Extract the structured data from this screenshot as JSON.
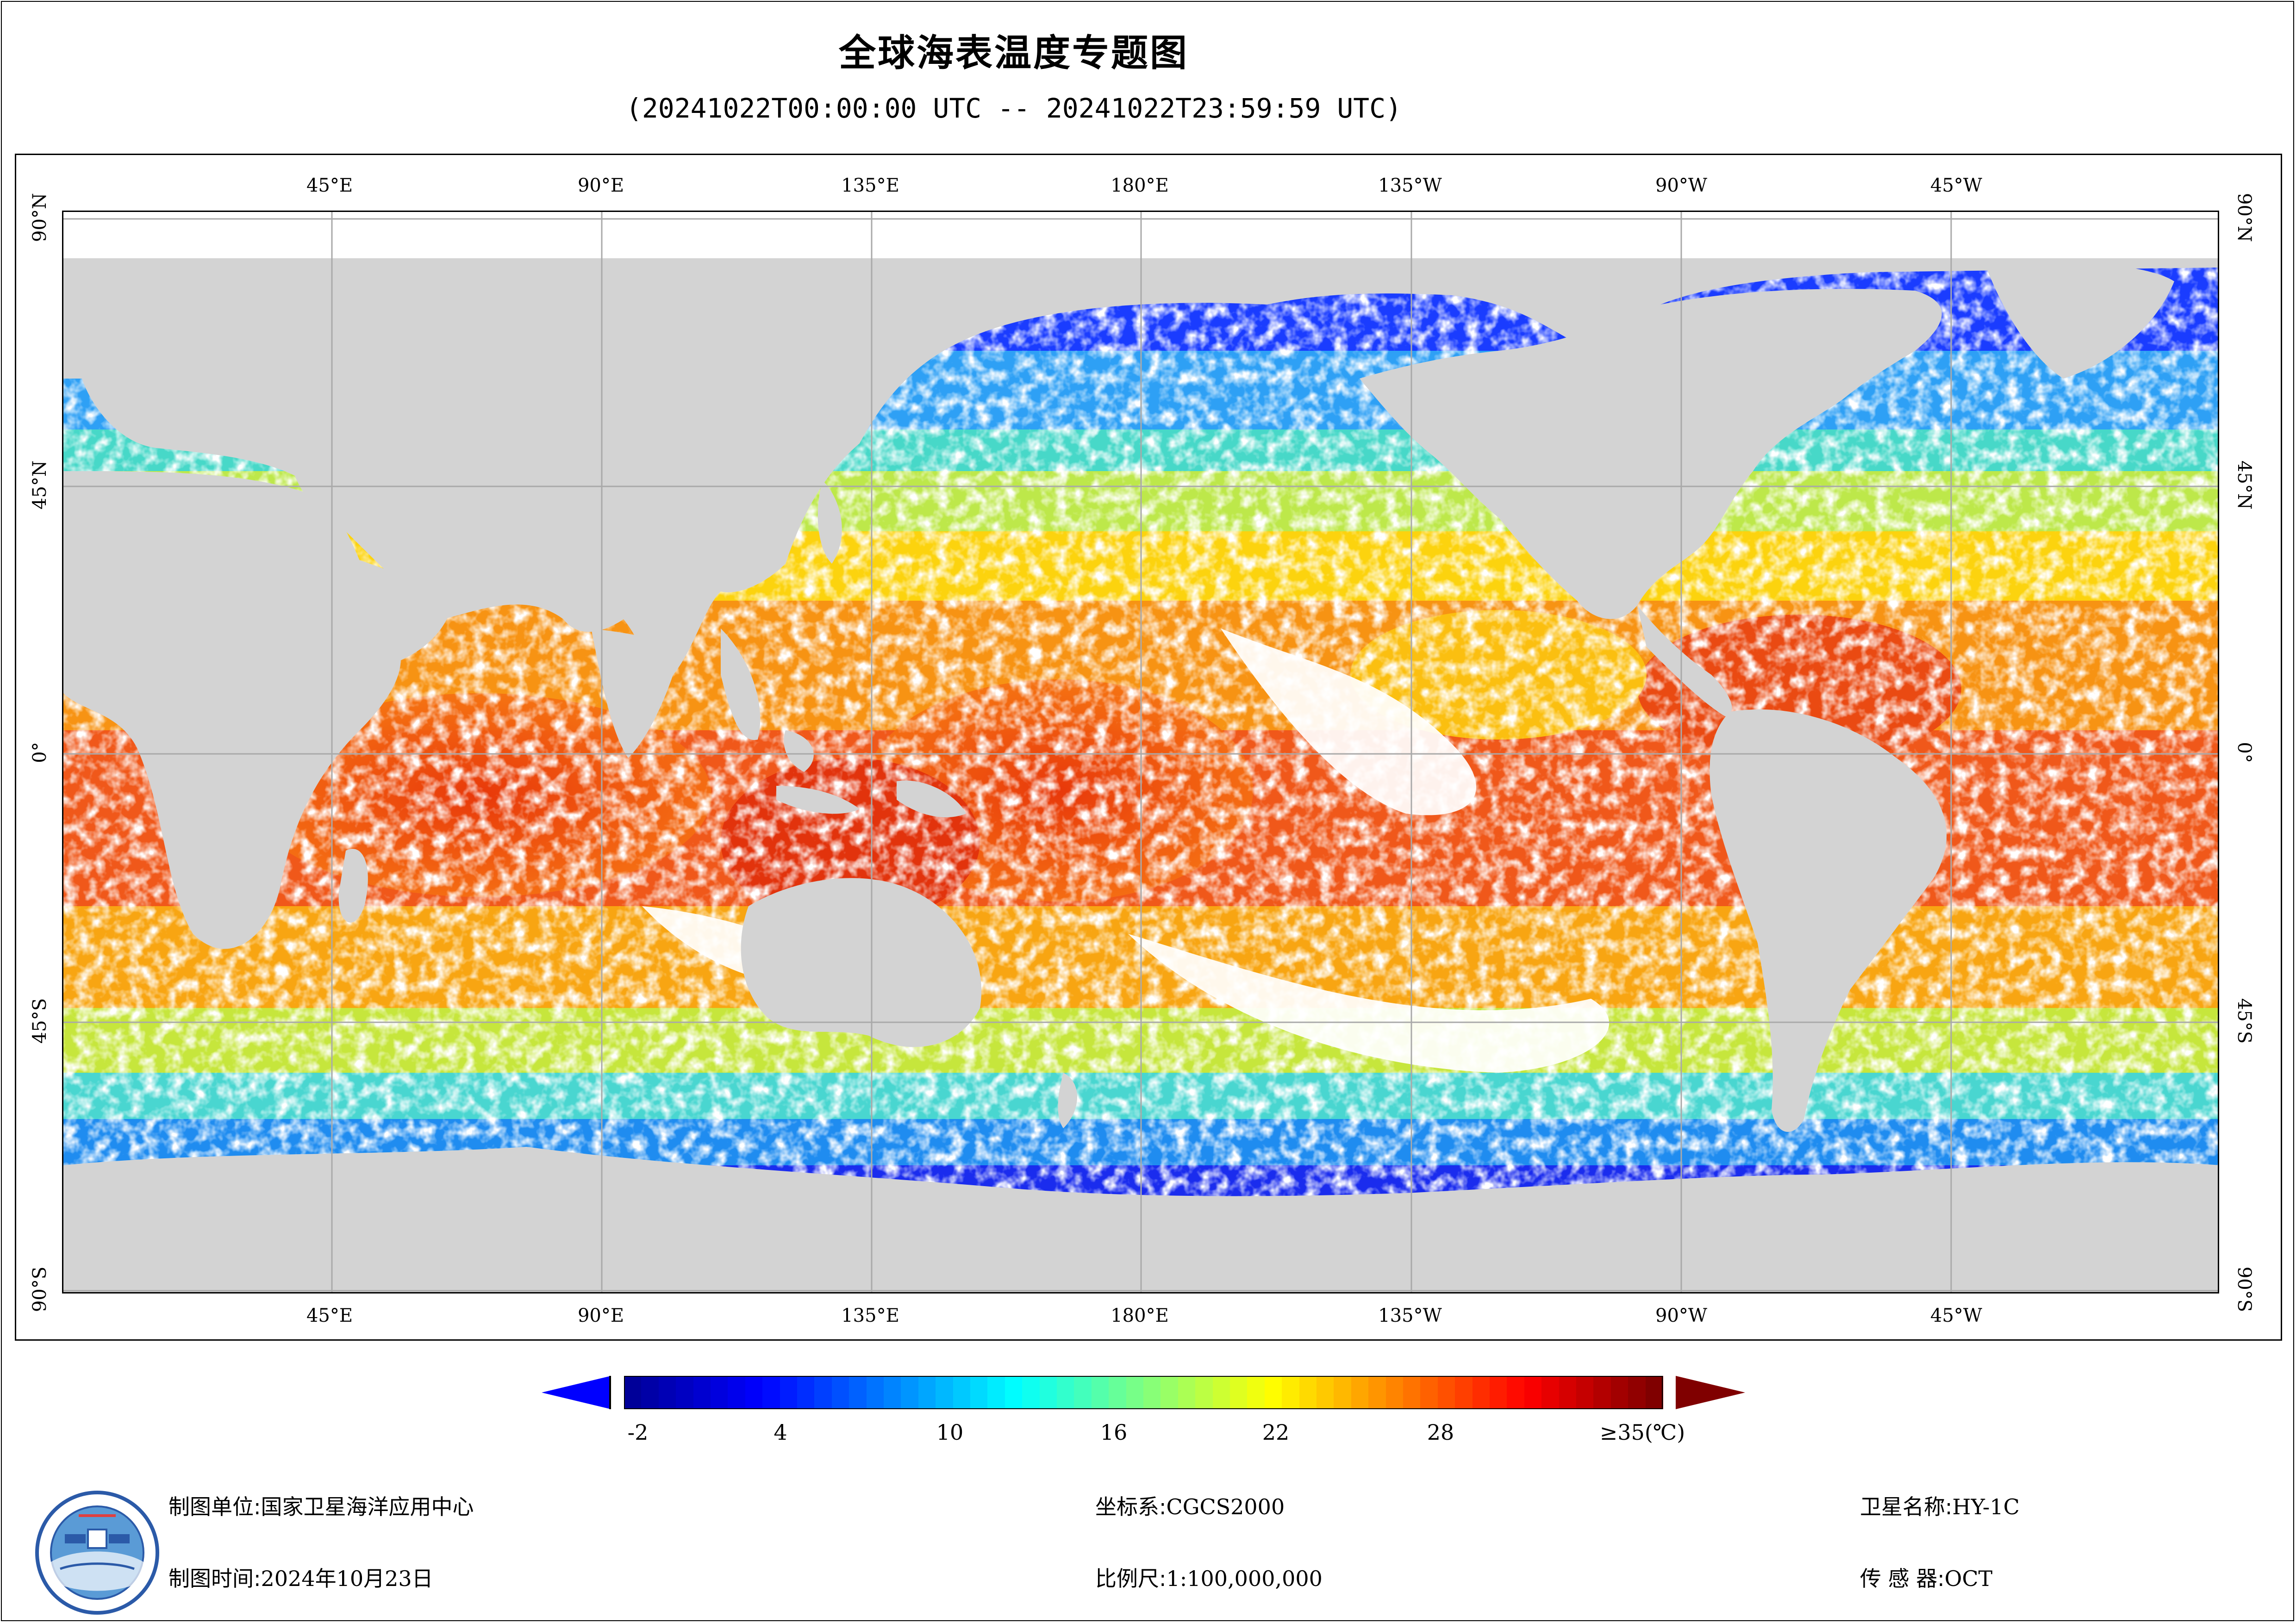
{
  "title": "全球海表温度专题图",
  "subtitle": "(20241022T00:00:00 UTC -- 20241022T23:59:59 UTC)",
  "graticule": {
    "lon_top": [
      "45°E",
      "90°E",
      "135°E",
      "180°E",
      "135°W",
      "90°W",
      "45°W"
    ],
    "lon_bottom": [
      "45°E",
      "90°E",
      "135°E",
      "180°E",
      "135°W",
      "90°W",
      "45°W"
    ],
    "lat_left": [
      "90°N",
      "45°N",
      "0°",
      "45°S",
      "90°S"
    ],
    "lat_right": [
      "90°N",
      "45°N",
      "0°",
      "45°S",
      "90°S"
    ]
  },
  "colors": {
    "land": "#d3d3d3",
    "no_data": "#ffffff",
    "grid": "#a9a9a9",
    "below_min": "#0000ff",
    "above_max": "#800000"
  },
  "colorbar": {
    "unit": "(℃)",
    "ticks": [
      "-2",
      "4",
      "10",
      "16",
      "22",
      "28",
      "≥35(℃)"
    ],
    "min": -2,
    "max": 35
  },
  "footer": {
    "unit_label": "制图单位:",
    "unit_value": "国家卫星海洋应用中心",
    "time_label": "制图时间:",
    "time_value": "2024年10月23日",
    "crs_label": "坐标系:",
    "crs_value": "CGCS2000",
    "scale_label": "比例尺:",
    "scale_value": "1:100,000,000",
    "satellite_label": "卫星名称:",
    "satellite_value": "HY-1C",
    "sensor_label": "传 感 器:",
    "sensor_value": "OCT"
  },
  "logo_icon": "nsoas-emblem-icon"
}
